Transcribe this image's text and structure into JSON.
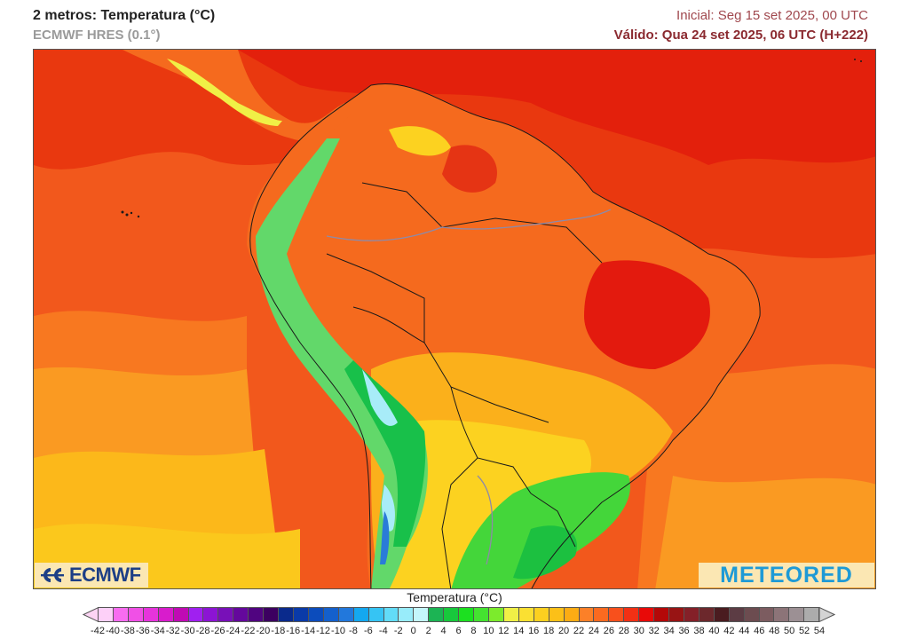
{
  "header": {
    "title": "2 metros: Temperatura (°C)",
    "model": "ECMWF HRES (0.1°)",
    "initial": "Inicial: Seg 15 set 2025, 00 UTC",
    "valid": "Válido: Qua 24 set 2025, 06 UTC (H+222)"
  },
  "map": {
    "region": "South America",
    "variable": "2 m temperature",
    "logos": {
      "left": "ECMWF",
      "right": "METEORED"
    },
    "colors": {
      "ocean_warm": "#f2581c",
      "ocean_hot": "#e8200c",
      "ocean_mild": "#fa8a22",
      "ocean_cool": "#fcb81a",
      "land_hot": "#e31a0e",
      "land_warm": "#f56a1e",
      "land_mild": "#fbbf1d",
      "andes_cold": "#18c04a",
      "andes_colder": "#62d86a",
      "snow_ice": "#a8ecf8",
      "border": "#1a1a1a",
      "river": "#8e8aa8"
    }
  },
  "colorbar": {
    "title": "Temperatura (°C)",
    "ticks": [
      "-42",
      "-40",
      "-38",
      "-36",
      "-34",
      "-32",
      "-30",
      "-28",
      "-26",
      "-24",
      "-22",
      "-20",
      "-18",
      "-16",
      "-14",
      "-12",
      "-10",
      "-8",
      "-6",
      "-4",
      "-2",
      "0",
      "2",
      "4",
      "6",
      "8",
      "10",
      "12",
      "14",
      "16",
      "18",
      "20",
      "22",
      "24",
      "26",
      "28",
      "30",
      "32",
      "34",
      "36",
      "38",
      "40",
      "42",
      "44",
      "46",
      "48",
      "50",
      "52",
      "54"
    ],
    "under_color": "#fcd4f4",
    "over_color": "#d4d4d4",
    "colors": [
      "#fdd0f8",
      "#f86cf0",
      "#f050e6",
      "#e634dc",
      "#d81ccc",
      "#c00ab4",
      "#a020f0",
      "#8c14d4",
      "#7810b8",
      "#64089c",
      "#500480",
      "#3c0060",
      "#0a2a8c",
      "#0a3aa8",
      "#0c4cbc",
      "#1460cc",
      "#2278dc",
      "#14a8f0",
      "#36c4f4",
      "#62dcf8",
      "#98ecfa",
      "#c4f6fc",
      "#1cb454",
      "#18c83c",
      "#1ce020",
      "#44e230",
      "#7ceb2c",
      "#f0f046",
      "#fae032",
      "#fcd020",
      "#fcc018",
      "#fcac14",
      "#fc8028",
      "#fa6a20",
      "#f8501c",
      "#f23014",
      "#e80a08",
      "#b40808",
      "#981414",
      "#842028",
      "#6c282c",
      "#4a1c20",
      "#5c3c44",
      "#6c4c50",
      "#7c5c60",
      "#8c7478",
      "#9c9094",
      "#acacac",
      "#c0c0c0"
    ]
  }
}
